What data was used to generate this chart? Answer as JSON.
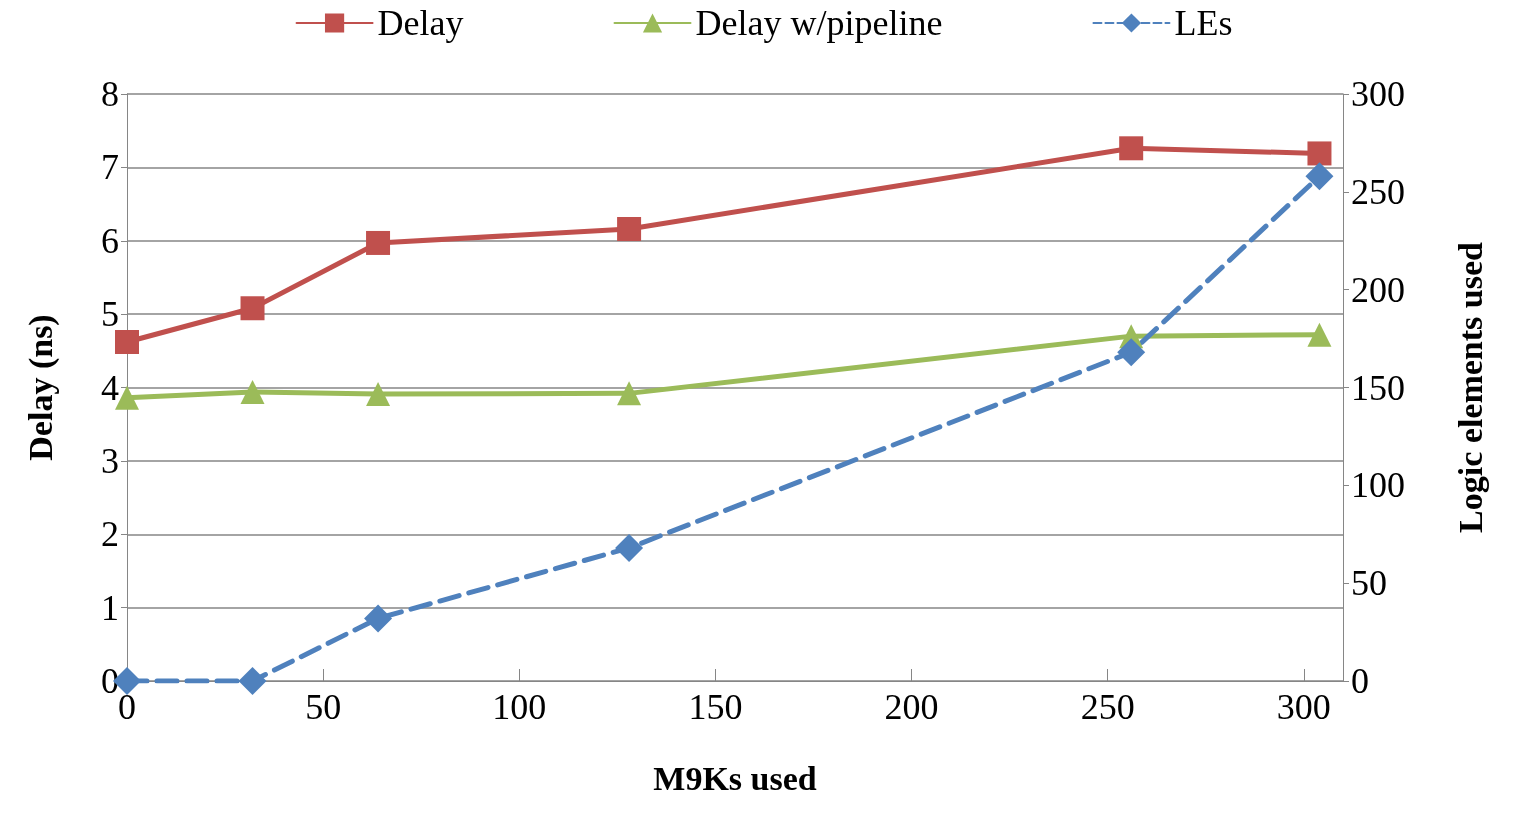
{
  "chart_data": {
    "type": "line",
    "xlabel": "M9Ks used",
    "ylabel": "Delay (ns)",
    "y2label": "Logic elements used",
    "x": [
      0,
      32,
      64,
      128,
      256,
      304
    ],
    "series": [
      {
        "name": "Delay",
        "color": "#c0504d",
        "marker": "square",
        "line_style": "solid",
        "values": [
          4.62,
          5.08,
          5.97,
          6.16,
          7.26,
          7.19
        ]
      },
      {
        "name": "Delay w/pipeline",
        "color": "#9bbb59",
        "marker": "triangle",
        "line_style": "solid",
        "values": [
          3.86,
          3.94,
          3.91,
          3.92,
          4.7,
          4.72
        ]
      },
      {
        "name": "LEs",
        "color": "#4f81bd",
        "marker": "diamond",
        "line_style": "dashed",
        "axis": "y2",
        "values": [
          0,
          0,
          32,
          68,
          168,
          258
        ]
      }
    ],
    "xlim": [
      0,
      310
    ],
    "xticks": [
      0,
      50,
      100,
      150,
      200,
      250,
      300
    ],
    "ylim": [
      0,
      8
    ],
    "yticks": [
      0,
      1,
      2,
      3,
      4,
      5,
      6,
      7,
      8
    ],
    "y2lim": [
      0,
      300
    ],
    "y2ticks": [
      0,
      50,
      100,
      150,
      200,
      250,
      300
    ],
    "grid": "y",
    "legend": "top"
  }
}
